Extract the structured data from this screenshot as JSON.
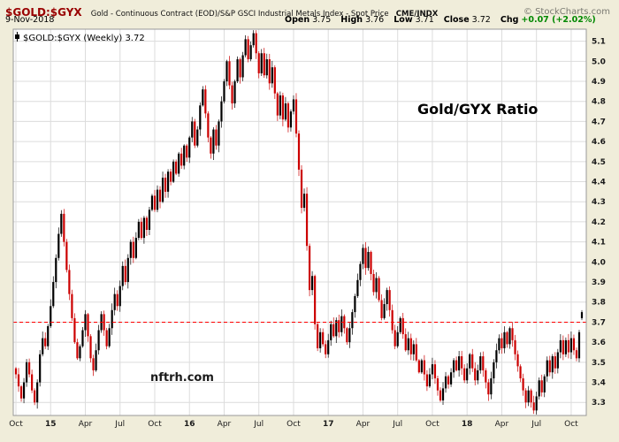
{
  "header": {
    "symbol": "$GOLD:$GYX",
    "description": "Gold - Continuous Contract (EOD)/S&P GSCI Industrial Metals Index - Spot Price",
    "exchange": "CME/INDX",
    "copyright": "© StockCharts.com",
    "date": "9-Nov-2018",
    "open_label": "Open",
    "open": "3.75",
    "high_label": "High",
    "high": "3.76",
    "low_label": "Low",
    "low": "3.71",
    "close_label": "Close",
    "close": "3.72",
    "chg_label": "Chg",
    "chg": "+0.07 (+2.02%)"
  },
  "legend": {
    "text": "$GOLD:$GYX (Weekly) 3.72"
  },
  "annotations": {
    "ratio_label": "Gold/GYX Ratio",
    "watermark": "nftrh.com"
  },
  "chart_data": {
    "type": "candlestick",
    "title": "$GOLD:$GYX (Weekly)",
    "timeframe": "Weekly",
    "x_range": "Oct 2014 - 9 Nov 2018",
    "ylim": [
      3.235,
      5.16
    ],
    "y_ticks": [
      3.3,
      3.4,
      3.5,
      3.6,
      3.7,
      3.8,
      3.9,
      4.0,
      4.1,
      4.2,
      4.3,
      4.4,
      4.5,
      4.6,
      4.7,
      4.8,
      4.9,
      5.0,
      5.1
    ],
    "x_ticks": [
      {
        "label": "Oct",
        "week": 0,
        "bold": false
      },
      {
        "label": "15",
        "week": 13,
        "bold": true
      },
      {
        "label": "Apr",
        "week": 26,
        "bold": false
      },
      {
        "label": "Jul",
        "week": 39,
        "bold": false
      },
      {
        "label": "Oct",
        "week": 52,
        "bold": false
      },
      {
        "label": "16",
        "week": 65,
        "bold": true
      },
      {
        "label": "Apr",
        "week": 78,
        "bold": false
      },
      {
        "label": "Jul",
        "week": 91,
        "bold": false
      },
      {
        "label": "Oct",
        "week": 104,
        "bold": false
      },
      {
        "label": "17",
        "week": 117,
        "bold": true
      },
      {
        "label": "Apr",
        "week": 130,
        "bold": false
      },
      {
        "label": "Jul",
        "week": 143,
        "bold": false
      },
      {
        "label": "Oct",
        "week": 156,
        "bold": false
      },
      {
        "label": "18",
        "week": 169,
        "bold": true
      },
      {
        "label": "Apr",
        "week": 182,
        "bold": false
      },
      {
        "label": "Jul",
        "week": 195,
        "bold": false
      },
      {
        "label": "Oct",
        "week": 208,
        "bold": false
      }
    ],
    "support_line_value": 3.7,
    "closes": [
      3.44,
      3.38,
      3.32,
      3.4,
      3.5,
      3.44,
      3.36,
      3.3,
      3.4,
      3.54,
      3.62,
      3.58,
      3.68,
      3.78,
      3.9,
      4.02,
      4.14,
      4.24,
      4.1,
      3.96,
      3.84,
      3.72,
      3.6,
      3.52,
      3.58,
      3.66,
      3.74,
      3.63,
      3.52,
      3.46,
      3.56,
      3.66,
      3.74,
      3.66,
      3.58,
      3.67,
      3.76,
      3.84,
      3.78,
      3.88,
      3.98,
      3.9,
      4.02,
      4.1,
      4.02,
      4.12,
      4.2,
      4.12,
      4.22,
      4.16,
      4.26,
      4.33,
      4.26,
      4.36,
      4.3,
      4.42,
      4.35,
      4.45,
      4.4,
      4.5,
      4.44,
      4.54,
      4.48,
      4.58,
      4.52,
      4.62,
      4.7,
      4.58,
      4.66,
      4.78,
      4.86,
      4.74,
      4.62,
      4.54,
      4.66,
      4.58,
      4.7,
      4.8,
      4.9,
      5.0,
      4.88,
      4.79,
      4.9,
      5.01,
      4.92,
      5.03,
      5.11,
      5.01,
      5.08,
      5.14,
      5.04,
      4.94,
      5.04,
      4.93,
      5.01,
      4.89,
      4.97,
      4.84,
      4.73,
      4.83,
      4.71,
      4.79,
      4.67,
      4.75,
      4.81,
      4.64,
      4.46,
      4.27,
      4.34,
      4.08,
      3.86,
      3.93,
      3.69,
      3.57,
      3.65,
      3.59,
      3.54,
      3.61,
      3.69,
      3.63,
      3.71,
      3.65,
      3.73,
      3.67,
      3.6,
      3.67,
      3.75,
      3.83,
      3.91,
      3.99,
      4.07,
      3.97,
      4.05,
      3.94,
      3.85,
      3.92,
      3.81,
      3.72,
      3.79,
      3.86,
      3.76,
      3.66,
      3.58,
      3.65,
      3.72,
      3.64,
      3.56,
      3.62,
      3.54,
      3.59,
      3.51,
      3.45,
      3.51,
      3.44,
      3.38,
      3.44,
      3.49,
      3.42,
      3.36,
      3.31,
      3.37,
      3.43,
      3.39,
      3.45,
      3.51,
      3.46,
      3.53,
      3.47,
      3.41,
      3.47,
      3.54,
      3.47,
      3.41,
      3.46,
      3.53,
      3.46,
      3.4,
      3.34,
      3.42,
      3.5,
      3.56,
      3.62,
      3.57,
      3.65,
      3.59,
      3.67,
      3.61,
      3.54,
      3.48,
      3.42,
      3.36,
      3.3,
      3.36,
      3.3,
      3.26,
      3.33,
      3.41,
      3.35,
      3.43,
      3.51,
      3.45,
      3.53,
      3.47,
      3.55,
      3.61,
      3.54,
      3.61,
      3.55,
      3.62,
      3.56,
      3.52,
      3.65,
      3.72
    ],
    "last_candle": {
      "open": 3.75,
      "high": 3.76,
      "low": 3.71,
      "close": 3.72
    },
    "colors": {
      "up": "#000000",
      "down": "#CC0000",
      "grid": "#DCDCDC",
      "frame": "#999999",
      "support": "#FF0000",
      "plot_bg": "#FFFFFF",
      "page_bg": "#F0EDDA"
    }
  }
}
